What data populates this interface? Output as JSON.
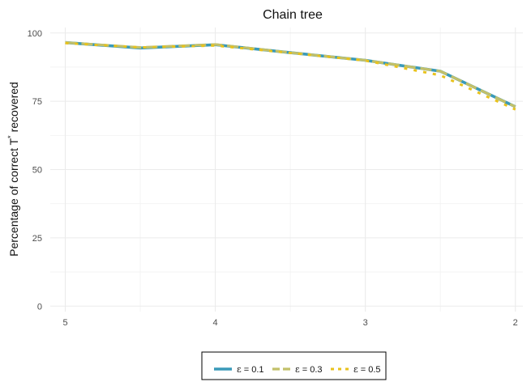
{
  "chart_data": {
    "type": "line",
    "title": "Chain tree",
    "xlabel": "",
    "ylabel": "Percentage of correct T* recovered",
    "ylabel_main": "Percentage of correct T",
    "ylabel_sup": "*",
    "ylabel_tail": " recovered",
    "x_reversed": true,
    "xlim": [
      5.1,
      1.95
    ],
    "ylim": [
      -2,
      102
    ],
    "x_ticks": [
      5,
      4,
      3,
      2
    ],
    "x_tick_labels": [
      "5",
      "4",
      "3",
      "2"
    ],
    "x_minor_ticks": [
      4.5,
      3.5,
      2.5
    ],
    "y_ticks": [
      0,
      25,
      50,
      75,
      100
    ],
    "y_tick_labels": [
      "0",
      "25",
      "50",
      "75",
      "100"
    ],
    "y_minor_ticks": [
      12.5,
      37.5,
      62.5,
      87.5
    ],
    "grid": true,
    "legend_position": "bottom",
    "x": [
      5,
      4.5,
      4,
      3.5,
      3,
      2.5,
      2
    ],
    "series": [
      {
        "name": "ε = 0.1",
        "label_prefix": "ε",
        "label_value": " = 0.1",
        "color": "#3a9ab9",
        "dash": "solid",
        "values": [
          96.5,
          94.5,
          95.7,
          92.8,
          90.0,
          86.0,
          73.0
        ]
      },
      {
        "name": "ε = 0.3",
        "label_prefix": "ε",
        "label_value": " = 0.3",
        "color": "#c2c06a",
        "dash": "longdash",
        "values": [
          96.5,
          94.7,
          95.8,
          92.8,
          90.0,
          86.0,
          73.0
        ]
      },
      {
        "name": "ε = 0.5",
        "label_prefix": "ε",
        "label_value": " = 0.5",
        "color": "#e8c21c",
        "dash": "dotted",
        "values": [
          96.3,
          94.7,
          95.4,
          92.7,
          89.9,
          84.5,
          72.0
        ]
      }
    ]
  }
}
